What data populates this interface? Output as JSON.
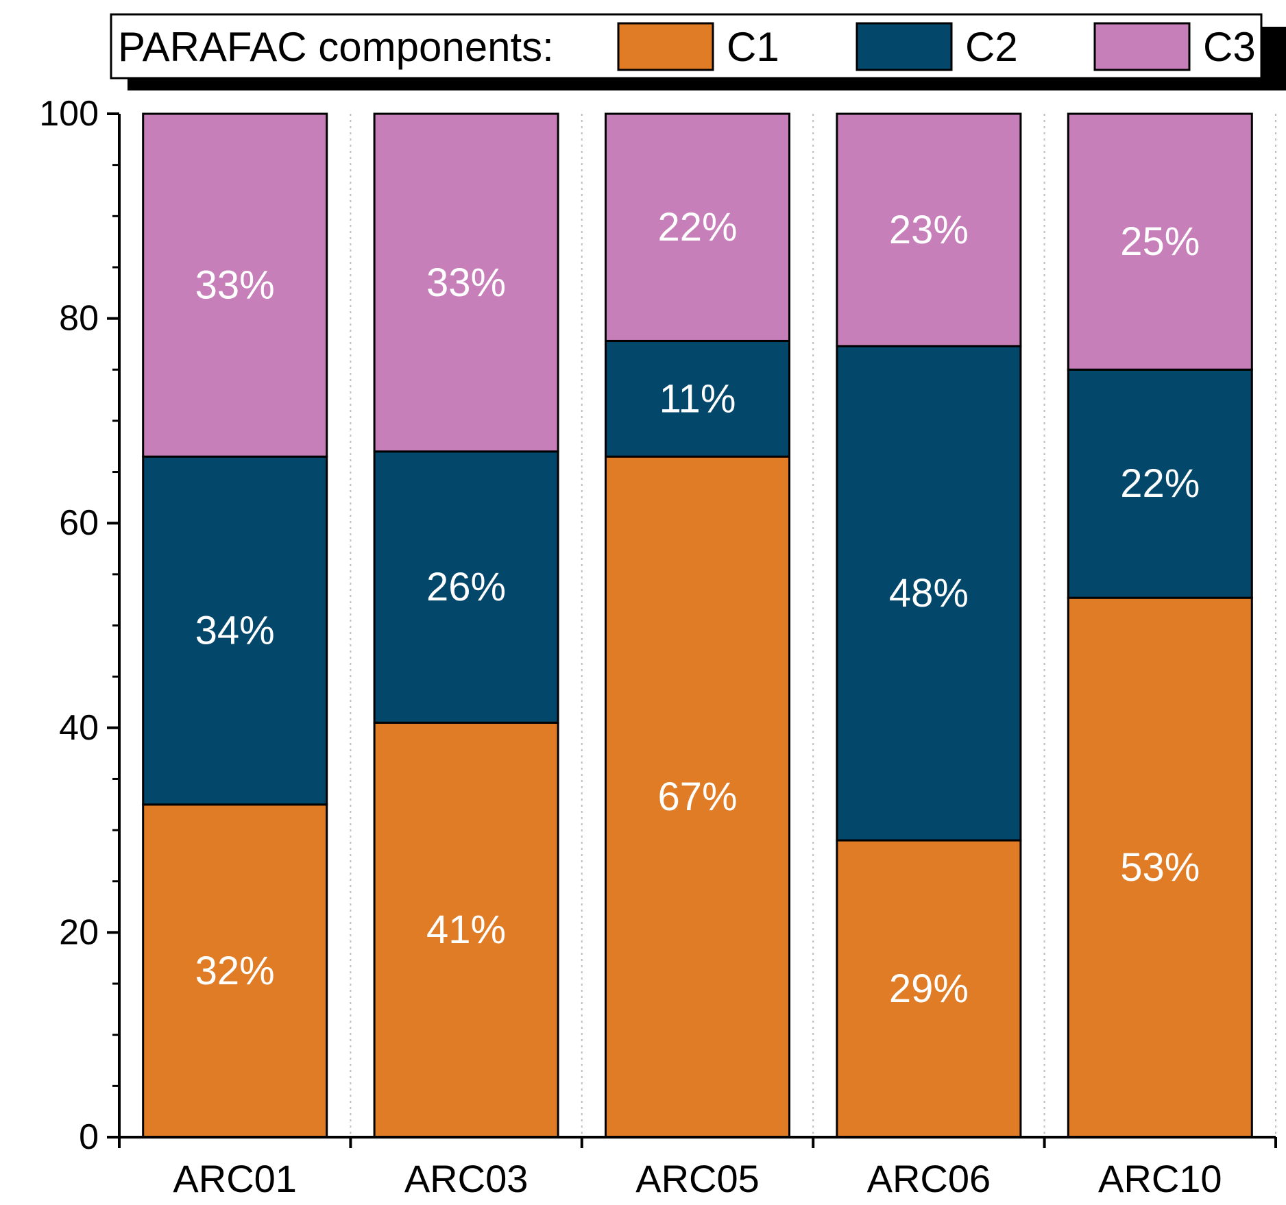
{
  "chart_data": {
    "type": "bar",
    "stacked": true,
    "title": "",
    "xlabel": "",
    "ylabel": "",
    "ylim": [
      0,
      100
    ],
    "y_ticks": [
      0,
      20,
      40,
      60,
      80,
      100
    ],
    "categories": [
      "ARC01",
      "ARC03",
      "ARC05",
      "ARC06",
      "ARC10"
    ],
    "series": [
      {
        "name": "C1",
        "color": "#e07c25",
        "values": [
          32.5,
          40.5,
          66.5,
          29,
          52.7
        ],
        "labels": [
          "32%",
          "41%",
          "67%",
          "29%",
          "53%"
        ]
      },
      {
        "name": "C2",
        "color": "#03476b",
        "values": [
          34,
          26.5,
          11.3,
          48.3,
          22.3
        ],
        "labels": [
          "34%",
          "26%",
          "11%",
          "48%",
          "22%"
        ]
      },
      {
        "name": "C3",
        "color": "#c67fb9",
        "values": [
          33.5,
          33,
          22.2,
          22.7,
          25
        ],
        "labels": [
          "33%",
          "33%",
          "22%",
          "23%",
          "25%"
        ]
      }
    ],
    "legend": {
      "title": "PARAFAC components:",
      "position": "top",
      "entries": [
        "C1",
        "C2",
        "C3"
      ]
    },
    "grid": false,
    "separators": "dotted vertical lines between categories"
  }
}
